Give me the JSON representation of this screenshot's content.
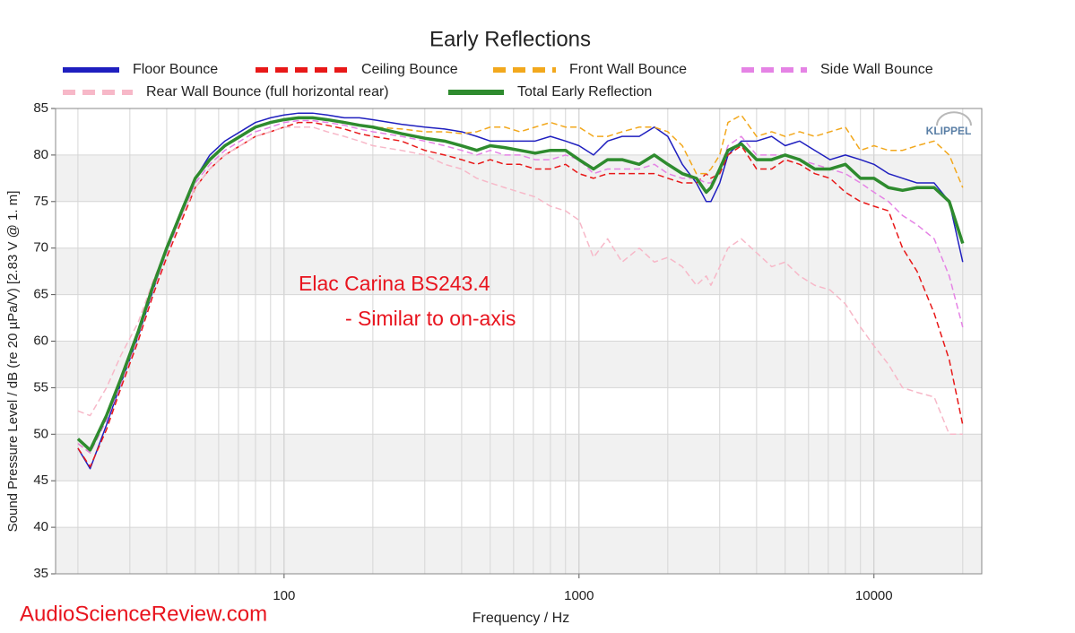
{
  "chart_data": {
    "type": "line",
    "title": "Early Reflections",
    "xlabel": "Frequency / Hz",
    "ylabel": "Sound Pressure Level / dB (re 20 µPa/V)  [2.83  V @ 1. m]",
    "annotations": [
      "Elac Carina BS243.4",
      "- Similar to on-axis"
    ],
    "watermark": "AudioScienceReview.com",
    "logo": "KLIPPEL",
    "xscale": "log",
    "grid": true,
    "xlim": [
      16.8,
      23200
    ],
    "ylim": [
      35,
      85
    ],
    "xticks": [
      100,
      1000,
      10000
    ],
    "xminorticks": [
      20,
      30,
      40,
      50,
      60,
      70,
      80,
      90,
      200,
      300,
      400,
      500,
      600,
      700,
      800,
      900,
      2000,
      3000,
      4000,
      5000,
      6000,
      7000,
      8000,
      9000,
      20000
    ],
    "yticks": [
      35,
      40,
      45,
      50,
      55,
      60,
      65,
      70,
      75,
      80,
      85
    ],
    "x": [
      20,
      22,
      25,
      28,
      32,
      36,
      40,
      45,
      50,
      56,
      63,
      71,
      80,
      90,
      100,
      112,
      125,
      140,
      160,
      180,
      200,
      250,
      300,
      350,
      400,
      450,
      500,
      560,
      630,
      710,
      800,
      900,
      1000,
      1120,
      1250,
      1400,
      1600,
      1800,
      2000,
      2240,
      2500,
      2700,
      2800,
      3000,
      3200,
      3550,
      4000,
      4500,
      5000,
      5600,
      6300,
      7100,
      8000,
      9000,
      10000,
      11200,
      12500,
      14000,
      16000,
      18000,
      20000
    ],
    "series": [
      {
        "name": "Floor Bounce",
        "color": "#1f1fbf",
        "style": "solid",
        "values": [
          48.5,
          46.3,
          51,
          55.5,
          60.5,
          65.5,
          70,
          74,
          77.5,
          80,
          81.5,
          82.5,
          83.5,
          84,
          84.3,
          84.5,
          84.5,
          84.3,
          84,
          84,
          83.8,
          83.3,
          83,
          82.8,
          82.5,
          82,
          81.5,
          81.5,
          81.5,
          81.5,
          82,
          81.5,
          81,
          80,
          81.5,
          82,
          82,
          83,
          82,
          79,
          77,
          75,
          75,
          77,
          80,
          81.5,
          81.5,
          82,
          81,
          81.5,
          80.5,
          79.5,
          80,
          79.5,
          79,
          78,
          77.5,
          77,
          77,
          75,
          68.5
        ]
      },
      {
        "name": "Ceiling Bounce",
        "color": "#e81818",
        "style": "dashed",
        "values": [
          48.5,
          46.5,
          50.5,
          55,
          60,
          65,
          69,
          73,
          76.5,
          78.5,
          80,
          81,
          82,
          82.5,
          83,
          83.5,
          83.5,
          83.2,
          82.8,
          82.3,
          82,
          81.5,
          80.5,
          80,
          79.5,
          79,
          79.5,
          79,
          79,
          78.5,
          78.5,
          79,
          78,
          77.5,
          78,
          78,
          78,
          78,
          77.5,
          77,
          77,
          78,
          77.5,
          78,
          80,
          81,
          78.5,
          78.5,
          79.5,
          79,
          78,
          77.5,
          76,
          75,
          74.5,
          74,
          70,
          67.5,
          63,
          58,
          51
        ]
      },
      {
        "name": "Front Wall Bounce",
        "color": "#f2a81d",
        "style": "dashed",
        "values": [
          49,
          48,
          52,
          56,
          61,
          66,
          70,
          74,
          77.5,
          79.5,
          81,
          82,
          83,
          83.5,
          83.8,
          84,
          84,
          83.8,
          83.5,
          83.2,
          83,
          82.8,
          82.5,
          82.5,
          82.3,
          82.5,
          83,
          83,
          82.5,
          83,
          83.5,
          83,
          83,
          82,
          82,
          82.5,
          83,
          83,
          82.5,
          81,
          78,
          78,
          78.5,
          80,
          83.5,
          84.3,
          82,
          82.5,
          82,
          82.5,
          82,
          82.5,
          83,
          80.5,
          81,
          80.5,
          80.5,
          81,
          81.5,
          80,
          76.5
        ]
      },
      {
        "name": "Side Wall Bounce",
        "color": "#e583e5",
        "style": "dashed",
        "values": [
          49,
          48,
          51.5,
          55.5,
          60.5,
          65.5,
          69.5,
          73.5,
          77,
          79,
          80.5,
          81.5,
          82.5,
          83,
          83.5,
          83.7,
          83.7,
          83.5,
          83.2,
          82.8,
          82.5,
          82,
          81.5,
          81,
          80.5,
          80,
          80.5,
          80,
          80,
          79.5,
          79.5,
          80,
          79.5,
          78,
          78.5,
          78.5,
          78.5,
          79,
          78,
          77.5,
          77.5,
          77,
          77,
          78.5,
          81,
          82,
          80,
          80,
          80,
          79.5,
          79,
          78.5,
          78,
          77,
          76,
          75,
          73.5,
          72.5,
          71,
          67,
          61.5
        ]
      },
      {
        "name": "Rear Wall Bounce (full horizontal rear)",
        "color": "#f7b8c8",
        "style": "dashed",
        "values": [
          52.5,
          52,
          55,
          58.5,
          62,
          66.5,
          70,
          73.5,
          76.5,
          78.5,
          80,
          81,
          82,
          82.5,
          83,
          83,
          83,
          82.5,
          82,
          81.5,
          81,
          80.5,
          80,
          79,
          78.5,
          77.5,
          77,
          76.5,
          76,
          75.5,
          74.5,
          74,
          73,
          69,
          71,
          68.5,
          70,
          68.5,
          69,
          68,
          66,
          67,
          66,
          68,
          70,
          71,
          69.5,
          68,
          68.5,
          67,
          66,
          65.5,
          64,
          61.5,
          59.5,
          57.5,
          55,
          54.5,
          54,
          50,
          50
        ]
      },
      {
        "name": "Total Early Reflection",
        "color": "#2e8b2e",
        "style": "bold",
        "values": [
          49.5,
          48.3,
          52,
          56,
          61,
          66,
          70,
          74,
          77.5,
          79.5,
          81,
          82,
          83,
          83.5,
          83.8,
          84,
          84,
          83.8,
          83.5,
          83.2,
          83,
          82.3,
          81.8,
          81.5,
          81,
          80.5,
          81,
          80.8,
          80.5,
          80.2,
          80.5,
          80.5,
          79.5,
          78.5,
          79.5,
          79.5,
          79,
          80,
          79,
          78,
          77.5,
          76,
          76.5,
          78.5,
          80.5,
          81.2,
          79.5,
          79.5,
          80,
          79.5,
          78.5,
          78.5,
          79,
          77.5,
          77.5,
          76.5,
          76.2,
          76.5,
          76.5,
          75,
          70.5
        ]
      }
    ]
  }
}
